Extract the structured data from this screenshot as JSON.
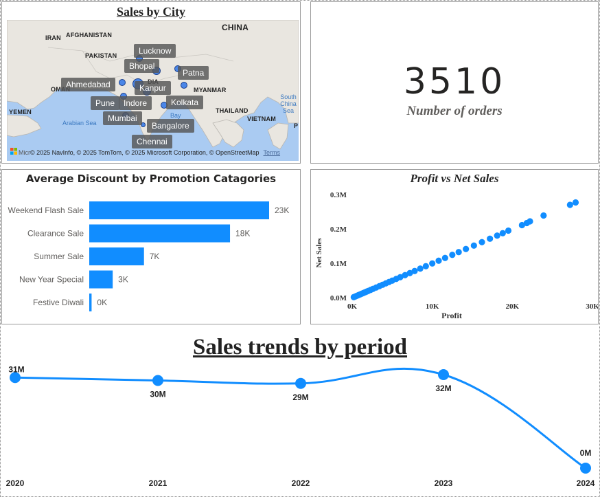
{
  "map": {
    "title": "Sales by City",
    "countries": [
      "CHINA",
      "IRAN",
      "AFGHANISTAN",
      "PAKISTAN",
      "OMAN",
      "YEMEN",
      "MYANMAR",
      "THAILAND",
      "VIETNAM"
    ],
    "seas": [
      "Arabian Sea",
      "South China Sea",
      "Bay"
    ],
    "cities": [
      "Lucknow",
      "Bhopal",
      "Patna",
      "Ahmedabad",
      "Kanpur",
      "Kolkata",
      "Pune",
      "Indore",
      "Mumbai",
      "Bangalore",
      "Chennai"
    ],
    "attribution": "© 2025 NavInfo, © 2025 TomTom, © 2025 Microsoft Corporation, © OpenStreetMap",
    "terms": "Terms",
    "partial_labels": [
      "Micr",
      "DIA",
      "P"
    ]
  },
  "kpi": {
    "value": "3510",
    "label": "Number of orders"
  },
  "bar_chart": {
    "title": "Average Discount by Promotion Catagories"
  },
  "scatter": {
    "title": "Profit vs Net Sales"
  },
  "line": {
    "title": "Sales trends by period"
  },
  "chart_data": [
    {
      "type": "bar",
      "orientation": "horizontal",
      "title": "Average Discount by Promotion Catagories",
      "categories": [
        "Weekend Flash Sale",
        "Clearance Sale",
        "Summer Sale",
        "New Year Special",
        "Festive Diwali"
      ],
      "values": [
        23000,
        18000,
        7000,
        3000,
        300
      ],
      "data_labels": [
        "23K",
        "18K",
        "7K",
        "3K",
        "0K"
      ],
      "color": "#118dff",
      "grid": false
    },
    {
      "type": "scatter",
      "title": "Profit vs Net Sales",
      "xlabel": "Profit",
      "ylabel": "Net Sales",
      "x_ticks": [
        "0K",
        "10K",
        "20K",
        "30K"
      ],
      "y_ticks": [
        "0.0M",
        "0.1M",
        "0.2M",
        "0.3M"
      ],
      "xlim": [
        0,
        30000
      ],
      "ylim": [
        0,
        300000
      ],
      "color": "#118dff",
      "points": [
        [
          200,
          1500
        ],
        [
          400,
          3500
        ],
        [
          600,
          5500
        ],
        [
          800,
          7500
        ],
        [
          1000,
          9500
        ],
        [
          1200,
          11500
        ],
        [
          1400,
          13500
        ],
        [
          1600,
          15500
        ],
        [
          1800,
          17500
        ],
        [
          2000,
          19500
        ],
        [
          2300,
          22500
        ],
        [
          2600,
          25500
        ],
        [
          3000,
          29500
        ],
        [
          3400,
          33500
        ],
        [
          3800,
          37500
        ],
        [
          4200,
          41500
        ],
        [
          4600,
          45500
        ],
        [
          5000,
          49500
        ],
        [
          5500,
          54500
        ],
        [
          6000,
          59500
        ],
        [
          6600,
          65500
        ],
        [
          7200,
          71500
        ],
        [
          7800,
          77500
        ],
        [
          8500,
          84500
        ],
        [
          9200,
          91500
        ],
        [
          10000,
          99500
        ],
        [
          10800,
          107500
        ],
        [
          11600,
          115500
        ],
        [
          12500,
          124500
        ],
        [
          13300,
          132500
        ],
        [
          14200,
          141500
        ],
        [
          15200,
          151500
        ],
        [
          16200,
          161500
        ],
        [
          17200,
          171500
        ],
        [
          18100,
          180500
        ],
        [
          18800,
          187500
        ],
        [
          19500,
          195000
        ],
        [
          21200,
          211000
        ],
        [
          21800,
          217000
        ],
        [
          22200,
          222000
        ],
        [
          23900,
          239000
        ],
        [
          27200,
          270000
        ],
        [
          27900,
          277000
        ]
      ]
    },
    {
      "type": "line",
      "title": "Sales trends by period",
      "x": [
        "2020",
        "2021",
        "2022",
        "2023",
        "2024"
      ],
      "values": [
        31,
        30,
        29,
        32,
        0
      ],
      "data_labels": [
        "31M",
        "30M",
        "29M",
        "32M",
        "0M"
      ],
      "unit": "M",
      "color": "#118dff"
    }
  ]
}
